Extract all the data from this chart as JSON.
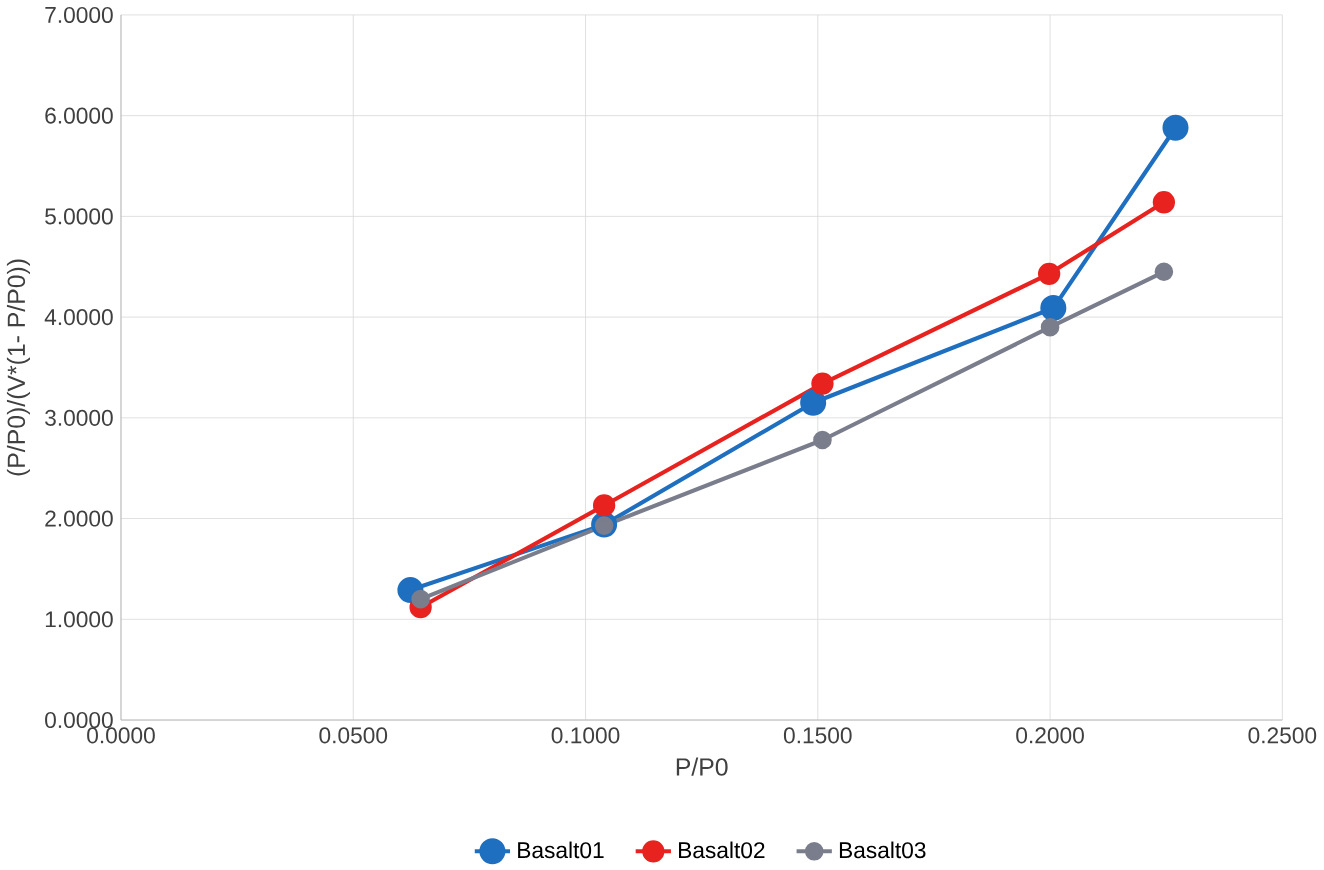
{
  "chart_data": {
    "type": "line",
    "xlabel": "P/P0",
    "ylabel": "(P/P0)/(V*(1- P/P0))",
    "xlim": [
      0,
      0.25
    ],
    "ylim": [
      0,
      7
    ],
    "xticks": [
      {
        "value": 0,
        "label": "0.0000"
      },
      {
        "value": 0.05,
        "label": "0.0500"
      },
      {
        "value": 0.1,
        "label": "0.1000"
      },
      {
        "value": 0.15,
        "label": "0.1500"
      },
      {
        "value": 0.2,
        "label": "0.2000"
      },
      {
        "value": 0.25,
        "label": "0.2500"
      }
    ],
    "yticks": [
      {
        "value": 0,
        "label": "0.0000"
      },
      {
        "value": 1,
        "label": "1.0000"
      },
      {
        "value": 2,
        "label": "2.0000"
      },
      {
        "value": 3,
        "label": "3.0000"
      },
      {
        "value": 4,
        "label": "4.0000"
      },
      {
        "value": 5,
        "label": "5.0000"
      },
      {
        "value": 6,
        "label": "6.0000"
      },
      {
        "value": 7,
        "label": "7.0000"
      }
    ],
    "grid": true,
    "legend": "bottom",
    "marker": "circle",
    "line_style": "solid",
    "series": [
      {
        "name": "Basalt01",
        "color": "#1f6fc0",
        "x": [
          0.0623,
          0.104,
          0.149,
          0.2007,
          0.227
        ],
        "values": [
          1.29,
          1.94,
          3.15,
          4.09,
          5.88
        ]
      },
      {
        "name": "Basalt02",
        "color": "#e8231f",
        "x": [
          0.0645,
          0.104,
          0.151,
          0.1998,
          0.2245
        ],
        "values": [
          1.12,
          2.13,
          3.34,
          4.43,
          5.14
        ]
      },
      {
        "name": "Basalt03",
        "color": "#7a7d8c",
        "x": [
          0.0645,
          0.104,
          0.151,
          0.2,
          0.2245
        ],
        "values": [
          1.2,
          1.93,
          2.78,
          3.9,
          4.45
        ]
      }
    ]
  }
}
